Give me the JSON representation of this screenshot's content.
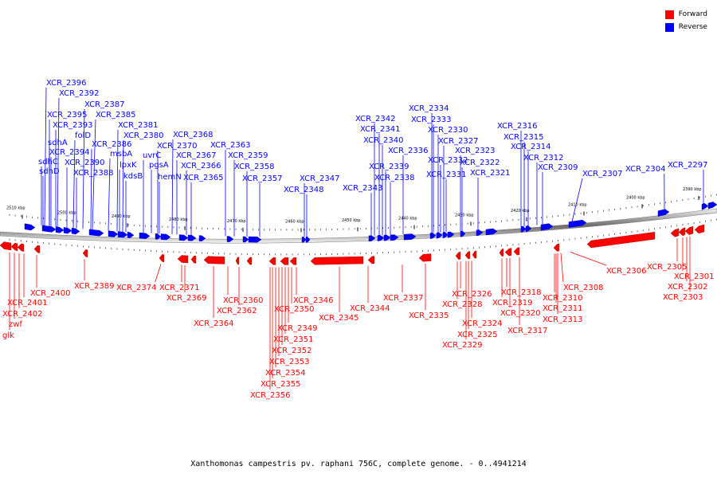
{
  "caption": "Xanthomonas campestris pv. raphani 756C, complete genome. - 0..4941214",
  "colors": {
    "forward": "#ff0000",
    "reverse": "#0000ff",
    "backbone": "#888888"
  },
  "legend": [
    {
      "label": "Forward",
      "color": "#ff0000"
    },
    {
      "label": "Reverse",
      "color": "#0000ff"
    }
  ],
  "ticks": [
    "2510 kbp",
    "2500 kbp",
    "2490 kbp",
    "2480 kbp",
    "2470 kbp",
    "2460 kbp",
    "2450 kbp",
    "2440 kbp",
    "2430 kbp",
    "2420 kbp",
    "2410 kbp",
    "2400 kbp",
    "2390 kbp"
  ],
  "reverse_labels": [
    "XCR_2396",
    "XCR_2392",
    "XCR_2387",
    "XCR_2395",
    "XCR_2385",
    "XCR_2393",
    "XCR_2381",
    "folD",
    "XCR_2380",
    "sdhA",
    "XCR_2386",
    "uvrC",
    "XCR_2394",
    "msbA",
    "XCR_2370",
    "XCR_2368",
    "sdhC",
    "XCR_2390",
    "lpxK",
    "pgsA",
    "XCR_2367",
    "sdhD",
    "XCR_2388",
    "kdsB",
    "hemN",
    "XCR_2366",
    "XCR_2365",
    "XCR_2363",
    "XCR_2359",
    "XCR_2358",
    "XCR_2357",
    "XCR_2347",
    "XCR_2348",
    "XCR_2343",
    "XCR_2342",
    "XCR_2341",
    "XCR_2340",
    "XCR_2339",
    "XCR_2338",
    "XCR_2336",
    "XCR_2334",
    "XCR_2333",
    "XCR_2330",
    "XCR_2327",
    "XCR_2332",
    "XCR_2331",
    "XCR_2323",
    "XCR_2322",
    "XCR_2321",
    "XCR_2316",
    "XCR_2315",
    "XCR_2314",
    "XCR_2312",
    "XCR_2309",
    "XCR_2307",
    "XCR_2304",
    "XCR_2297"
  ],
  "forward_labels": [
    "XCR_2400",
    "XCR_2401",
    "XCR_2402",
    "zwf",
    "glk",
    "XCR_2389",
    "XCR_2374",
    "XCR_2371",
    "XCR_2369",
    "XCR_2364",
    "XCR_2360",
    "XCR_2362",
    "XCR_2346",
    "XCR_2350",
    "XCR_2349",
    "XCR_2351",
    "XCR_2352",
    "XCR_2353",
    "XCR_2354",
    "XCR_2355",
    "XCR_2356",
    "XCR_2345",
    "XCR_2344",
    "XCR_2337",
    "XCR_2335",
    "XCR_2326",
    "XCR_2328",
    "XCR_2324",
    "XCR_2325",
    "XCR_2329",
    "XCR_2318",
    "XCR_2319",
    "XCR_2320",
    "XCR_2317",
    "XCR_2310",
    "XCR_2308",
    "XCR_2311",
    "XCR_2313",
    "XCR_2306",
    "XCR_2305",
    "XCR_2301",
    "XCR_2302",
    "XCR_2303"
  ]
}
